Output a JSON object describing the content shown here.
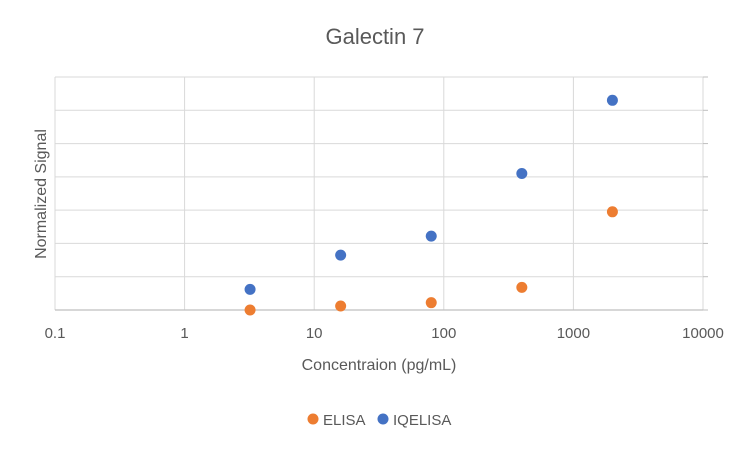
{
  "chart_data": {
    "type": "scatter",
    "title": "Galectin 7",
    "xlabel": "Concentraion (pg/mL)",
    "ylabel": "Normalized Signal",
    "x_scale": "log",
    "xlim": [
      0.1,
      10000
    ],
    "x_ticks": [
      0.1,
      1,
      10,
      100,
      1000,
      10000
    ],
    "x_tick_labels": [
      "0.1",
      "1",
      "10",
      "100",
      "1000",
      "10000"
    ],
    "ylim": [
      0,
      7
    ],
    "y_gridlines": [
      0,
      1,
      2,
      3,
      4,
      5,
      6,
      7
    ],
    "y_tick_labels_shown": false,
    "grid": true,
    "legend_position": "bottom",
    "series": [
      {
        "name": "ELISA",
        "color": "#ED7D31",
        "x": [
          3.2,
          16,
          80,
          400,
          2000
        ],
        "y": [
          0.0,
          0.12,
          0.22,
          0.68,
          2.95
        ]
      },
      {
        "name": "IQELISA",
        "color": "#4472C4",
        "x": [
          3.2,
          16,
          80,
          400,
          2000
        ],
        "y": [
          0.62,
          1.65,
          2.22,
          4.1,
          6.3
        ]
      }
    ]
  }
}
